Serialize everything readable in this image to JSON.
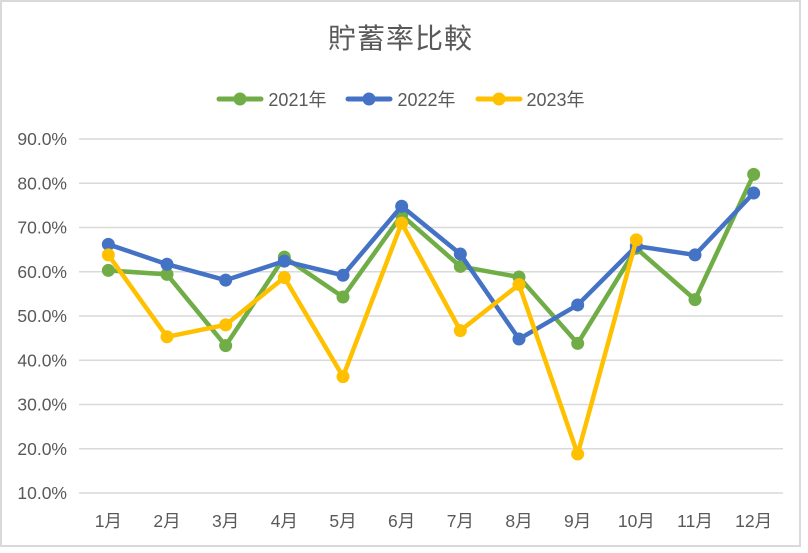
{
  "window": {
    "background": "#FFFFFF",
    "frame_border_color": "#D9D9D9"
  },
  "chart_data": {
    "type": "line",
    "title": "貯蓄率比較",
    "categories": [
      "1月",
      "2月",
      "3月",
      "4月",
      "5月",
      "6月",
      "7月",
      "8月",
      "9月",
      "10月",
      "11月",
      "12月"
    ],
    "series": [
      {
        "name": "2021年",
        "color": "#70AD47",
        "values": [
          60.3,
          59.4,
          43.3,
          63.3,
          54.3,
          72.8,
          61.2,
          58.8,
          43.8,
          65.3,
          53.7,
          82.0
        ]
      },
      {
        "name": "2022年",
        "color": "#4472C4",
        "values": [
          66.2,
          61.7,
          58.1,
          62.4,
          59.2,
          74.8,
          64.0,
          44.8,
          52.5,
          65.8,
          63.8,
          77.8
        ]
      },
      {
        "name": "2023年",
        "color": "#FFC000",
        "values": [
          63.8,
          45.3,
          48.0,
          58.7,
          36.3,
          71.0,
          46.7,
          57.1,
          18.8,
          67.2,
          null,
          null
        ]
      }
    ],
    "ylim": [
      10,
      90
    ],
    "y_ticks": [
      {
        "label": "90.0%",
        "value": 90
      },
      {
        "label": "80.0%",
        "value": 80
      },
      {
        "label": "70.0%",
        "value": 70
      },
      {
        "label": "60.0%",
        "value": 60
      },
      {
        "label": "50.0%",
        "value": 50
      },
      {
        "label": "40.0%",
        "value": 40
      },
      {
        "label": "30.0%",
        "value": 30
      },
      {
        "label": "20.0%",
        "value": 20
      },
      {
        "label": "10.0%",
        "value": 10
      }
    ],
    "xlabel": "",
    "ylabel": "",
    "grid": true,
    "grid_color": "#D9D9D9",
    "text_color": "#595959",
    "legend_position": "top",
    "line_width": 4.5,
    "marker_radius": 6.5
  }
}
